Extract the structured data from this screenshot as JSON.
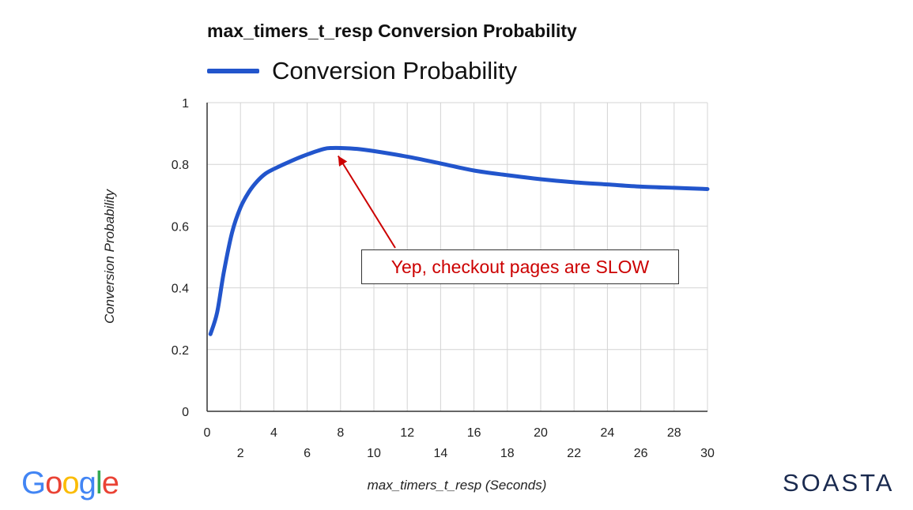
{
  "chart_data": {
    "type": "line",
    "title": "max_timers_t_resp Conversion Probability",
    "xlabel": "max_timers_t_resp (Seconds)",
    "ylabel": "Conversion Probability",
    "xlim": [
      0,
      30
    ],
    "ylim": [
      0,
      1
    ],
    "x_ticks_row1": [
      "0",
      "4",
      "8",
      "12",
      "16",
      "20",
      "24",
      "28"
    ],
    "x_ticks_row2": [
      "2",
      "6",
      "10",
      "14",
      "18",
      "22",
      "26",
      "30"
    ],
    "y_ticks": [
      "0",
      "0.2",
      "0.4",
      "0.6",
      "0.8",
      "1"
    ],
    "grid": true,
    "legend": "top-left",
    "series": [
      {
        "name": "Conversion Probability",
        "color": "#2255cc",
        "x": [
          0.2,
          0.6,
          1.0,
          1.5,
          2.0,
          2.5,
          3.0,
          3.5,
          4.0,
          5.0,
          6.0,
          7.0,
          7.5,
          8.0,
          9.0,
          10.0,
          12.0,
          14.0,
          16.0,
          18.0,
          20.0,
          22.0,
          24.0,
          26.0,
          28.0,
          30.0
        ],
        "y": [
          0.25,
          0.32,
          0.45,
          0.58,
          0.66,
          0.71,
          0.745,
          0.77,
          0.785,
          0.81,
          0.832,
          0.85,
          0.853,
          0.853,
          0.85,
          0.843,
          0.825,
          0.803,
          0.78,
          0.765,
          0.752,
          0.742,
          0.735,
          0.728,
          0.724,
          0.72
        ]
      }
    ],
    "annotations": [
      {
        "text": "Yep, checkout pages are SLOW",
        "color": "#cc0000",
        "x": 8.0,
        "y": 0.853
      }
    ]
  },
  "logos": {
    "left": {
      "text": "Google",
      "letters": [
        "G",
        "o",
        "o",
        "g",
        "l",
        "e"
      ],
      "colors": [
        "#4285F4",
        "#EA4335",
        "#FBBC05",
        "#4285F4",
        "#34A853",
        "#EA4335"
      ]
    },
    "right": {
      "text": "SOASTA"
    }
  }
}
